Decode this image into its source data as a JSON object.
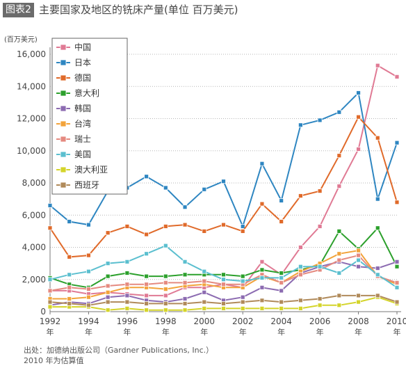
{
  "header": {
    "tag": "图表2",
    "title": "主要国家及地区的铣床产量(单位 百万美元)"
  },
  "chart_data": {
    "type": "line",
    "unit_label": "(百万美元)",
    "y_ticks": [
      "0",
      "2,000",
      "4,000",
      "6,000",
      "8,000",
      "10,000",
      "12,000",
      "14,000",
      "16,000"
    ],
    "ylim": [
      0,
      16000
    ],
    "x": [
      1992,
      1993,
      1994,
      1995,
      1996,
      1997,
      1998,
      1999,
      2000,
      2001,
      2002,
      2003,
      2004,
      2005,
      2006,
      2007,
      2008,
      2009,
      2010
    ],
    "x_ticks": [
      1992,
      1994,
      1996,
      1998,
      2000,
      2002,
      2004,
      2006,
      2008,
      2010
    ],
    "x_tick_suffix": "年",
    "grid": "horizontal dotted",
    "legend_position": "top-left",
    "series": [
      {
        "name": "中国",
        "color": "#e07a94",
        "values": [
          1300,
          1300,
          1100,
          1200,
          1100,
          1000,
          1000,
          1500,
          1500,
          1700,
          1500,
          3100,
          2300,
          4000,
          5300,
          7800,
          10100,
          15300,
          14600
        ]
      },
      {
        "name": "日本",
        "color": "#2e86c1",
        "values": [
          6600,
          5600,
          5400,
          7500,
          7700,
          8400,
          7700,
          6500,
          7600,
          8100,
          5300,
          9200,
          6900,
          11600,
          11900,
          12400,
          13600,
          7000,
          10500
        ]
      },
      {
        "name": "德国",
        "color": "#e06a2a",
        "values": [
          5200,
          3400,
          3500,
          4900,
          5300,
          4800,
          5300,
          5400,
          5000,
          5400,
          5000,
          6700,
          5600,
          7200,
          7500,
          9700,
          12100,
          10800,
          6800
        ]
      },
      {
        "name": "意大利",
        "color": "#2ca02c",
        "values": [
          2100,
          1700,
          1500,
          2200,
          2400,
          2200,
          2200,
          2300,
          2300,
          2300,
          2200,
          2600,
          2400,
          2600,
          2900,
          5000,
          3900,
          5200,
          2800
        ]
      },
      {
        "name": "韩国",
        "color": "#8c6bb1",
        "values": [
          400,
          600,
          500,
          900,
          1000,
          700,
          600,
          800,
          1200,
          700,
          900,
          1500,
          1300,
          2400,
          2800,
          3100,
          2800,
          2700,
          3100
        ]
      },
      {
        "name": "台湾",
        "color": "#f2a33a",
        "values": [
          800,
          800,
          900,
          1200,
          1500,
          1500,
          1400,
          1600,
          1700,
          1500,
          1500,
          2200,
          1800,
          2500,
          3000,
          3600,
          3800,
          2200,
          1700
        ]
      },
      {
        "name": "瑞士",
        "color": "#e58a80",
        "values": [
          1300,
          1500,
          1400,
          1600,
          1700,
          1700,
          1800,
          1800,
          1900,
          1700,
          1700,
          2300,
          1800,
          2300,
          2600,
          3200,
          3500,
          2200,
          1800
        ]
      },
      {
        "name": "美国",
        "color": "#5bbfcf",
        "values": [
          2000,
          2300,
          2500,
          3000,
          3100,
          3600,
          4100,
          3100,
          2500,
          2000,
          1900,
          2100,
          2100,
          2800,
          2800,
          2400,
          3200,
          2300,
          1500
        ]
      },
      {
        "name": "澳大利亚",
        "color": "#d4d42a",
        "values": [
          300,
          300,
          300,
          100,
          200,
          100,
          100,
          100,
          200,
          200,
          200,
          200,
          200,
          200,
          400,
          400,
          600,
          900,
          500
        ]
      },
      {
        "name": "西班牙",
        "color": "#b08a5a",
        "values": [
          600,
          500,
          400,
          600,
          600,
          500,
          500,
          500,
          600,
          500,
          600,
          700,
          600,
          700,
          800,
          1000,
          1000,
          1000,
          600
        ]
      }
    ]
  },
  "footer": {
    "line1": "出处：加德纳出版公司（Gardner Publications, Inc.）",
    "line2": "2010 年为估算值"
  }
}
